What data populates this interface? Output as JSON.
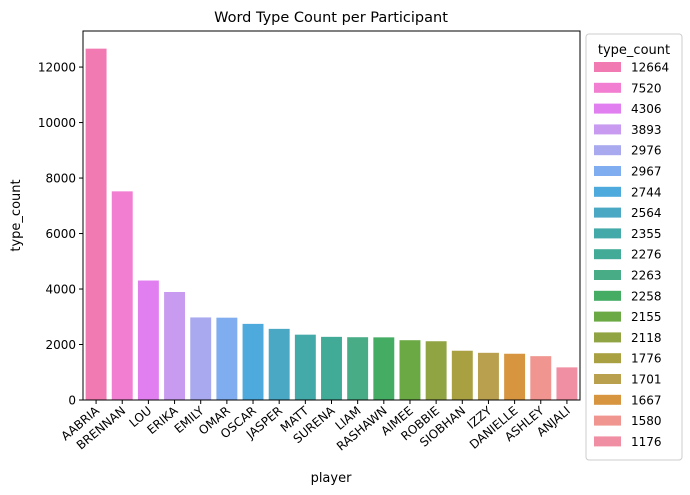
{
  "chart_data": {
    "type": "bar",
    "title": "Word Type Count per Participant",
    "xlabel": "player",
    "ylabel": "type_count",
    "ylim": [
      0,
      13300
    ],
    "yticks": [
      0,
      2000,
      4000,
      6000,
      8000,
      10000,
      12000
    ],
    "grid": false,
    "legend": {
      "title": "type_count",
      "placement": "right-outside"
    },
    "categories": [
      "AABRIA",
      "BRENNAN",
      "LOU",
      "ERIKA",
      "EMILY",
      "OMAR",
      "OSCAR",
      "JASPER",
      "MATT",
      "SURENA",
      "LIAM",
      "RASHAWN",
      "AIMEE",
      "ROBBIE",
      "SIOBHAN",
      "IZZY",
      "DANIELLE",
      "ASHLEY",
      "ANJALI"
    ],
    "values": [
      12664,
      7520,
      4306,
      3893,
      2976,
      2967,
      2744,
      2564,
      2355,
      2276,
      2263,
      2258,
      2155,
      2118,
      1776,
      1701,
      1667,
      1580,
      1176
    ],
    "colors": [
      "#f07ab1",
      "#f17ed1",
      "#e27ff0",
      "#c89bf0",
      "#a9a9f0",
      "#7fadf0",
      "#4eaadc",
      "#4aa8c4",
      "#44aaa9",
      "#42ab97",
      "#48ac86",
      "#45ad63",
      "#6ba944",
      "#91a444",
      "#a9a042",
      "#b9a04e",
      "#d7953f",
      "#f0958f",
      "#f08fa3"
    ]
  }
}
